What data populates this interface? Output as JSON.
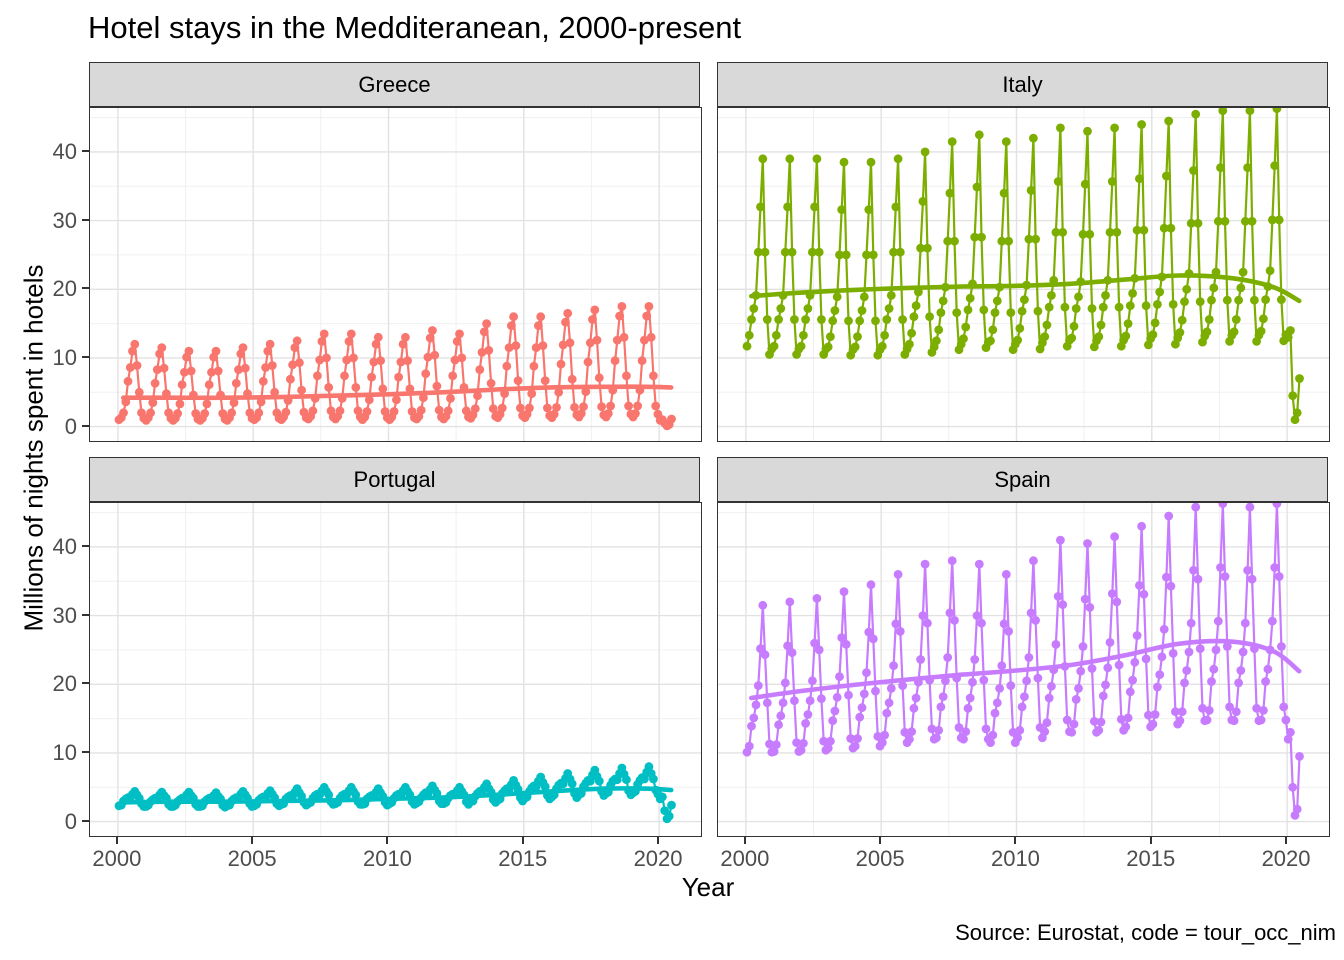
{
  "title": "Hotel stays in the Medditeranean, 2000-present",
  "caption": "Source: Eurostat, code = tour_occ_nim",
  "axes": {
    "x_label": "Year",
    "y_label": "Millions of nights spent in hotels",
    "x_ticks": [
      2000,
      2005,
      2010,
      2015,
      2020
    ],
    "y_ticks": [
      0,
      10,
      20,
      30,
      40
    ]
  },
  "chart_data": {
    "type": "line",
    "facet_layout": "2x2 grid, shared fixed scales",
    "x_unit": "monthly observations starting 2000-01, x = year + (month-0.5)/12",
    "x_domain": [
      1998.97,
      2021.55
    ],
    "y_domain": [
      -2.1,
      46.4
    ],
    "grid": {
      "x_major": [
        2000,
        2005,
        2010,
        2015,
        2020
      ],
      "x_minor": [
        2002.5,
        2007.5,
        2012.5,
        2017.5
      ],
      "y_major": [
        0,
        10,
        20,
        30,
        40
      ],
      "y_minor": [
        5,
        15,
        25,
        35,
        45
      ]
    },
    "facets": [
      {
        "name": "Greece",
        "color": "#F8766D",
        "start": "2000-01",
        "frequency": "monthly",
        "values": [
          1.0,
          1.3,
          2.0,
          3.6,
          6.6,
          8.6,
          11.0,
          12.0,
          8.9,
          5.0,
          2.0,
          1.2,
          0.9,
          1.3,
          2.0,
          3.5,
          6.3,
          8.3,
          10.6,
          11.5,
          8.5,
          4.8,
          2.0,
          1.2,
          0.9,
          1.2,
          1.9,
          3.3,
          6.1,
          7.9,
          10.1,
          11.0,
          8.1,
          4.6,
          1.9,
          1.1,
          0.9,
          1.2,
          1.9,
          3.3,
          6.1,
          7.9,
          10.1,
          11.0,
          8.1,
          4.6,
          1.9,
          1.1,
          0.9,
          1.3,
          2.0,
          3.5,
          6.3,
          8.3,
          10.6,
          11.5,
          8.5,
          4.8,
          2.0,
          1.2,
          1.0,
          1.3,
          2.0,
          3.6,
          6.6,
          8.6,
          11.0,
          12.0,
          8.9,
          5.0,
          2.0,
          1.2,
          1.0,
          1.4,
          2.1,
          3.8,
          6.9,
          9.0,
          11.5,
          12.5,
          9.3,
          5.3,
          2.1,
          1.3,
          1.1,
          1.5,
          2.3,
          4.1,
          7.4,
          9.7,
          12.4,
          13.5,
          10.0,
          5.7,
          2.3,
          1.4,
          1.1,
          1.5,
          2.3,
          4.1,
          7.4,
          9.7,
          12.4,
          13.5,
          10.0,
          5.7,
          2.3,
          1.4,
          1.0,
          1.4,
          2.2,
          3.9,
          7.2,
          9.4,
          12.0,
          13.0,
          9.6,
          5.5,
          2.2,
          1.3,
          1.0,
          1.4,
          2.2,
          3.9,
          7.2,
          9.4,
          12.0,
          13.0,
          9.6,
          5.5,
          2.2,
          1.3,
          1.1,
          1.5,
          2.4,
          4.2,
          7.7,
          10.1,
          12.9,
          14.0,
          10.4,
          5.9,
          2.4,
          1.4,
          1.1,
          1.5,
          2.3,
          4.1,
          7.4,
          9.7,
          12.4,
          13.5,
          10.0,
          5.7,
          2.3,
          1.4,
          1.2,
          1.7,
          2.6,
          4.5,
          8.3,
          10.8,
          13.8,
          15.0,
          11.1,
          6.3,
          2.6,
          1.5,
          1.3,
          1.8,
          2.7,
          4.8,
          8.8,
          11.5,
          14.7,
          16.0,
          11.8,
          6.7,
          2.7,
          1.6,
          1.3,
          1.8,
          2.7,
          4.8,
          8.8,
          11.5,
          14.7,
          16.0,
          11.8,
          6.7,
          2.7,
          1.6,
          1.3,
          1.8,
          2.8,
          5.0,
          9.1,
          11.9,
          15.2,
          16.5,
          12.2,
          6.9,
          2.8,
          1.7,
          1.4,
          1.9,
          2.9,
          5.1,
          9.4,
          12.2,
          15.6,
          17.0,
          12.6,
          7.1,
          2.9,
          1.7,
          1.4,
          1.9,
          3.0,
          5.3,
          9.6,
          12.6,
          16.1,
          17.5,
          13.0,
          7.4,
          3.0,
          1.8,
          1.4,
          1.9,
          3.0,
          5.3,
          9.6,
          12.6,
          16.1,
          17.5,
          13.0,
          7.4,
          3.0,
          1.8,
          0.9,
          1.0,
          0.5,
          0.1,
          0.3,
          1.1
        ],
        "trend": {
          "x": [
            2000.2,
            2002,
            2004,
            2006,
            2008,
            2010,
            2012,
            2014,
            2016,
            2018,
            2019.5,
            2020.45
          ],
          "y": [
            4.2,
            4.2,
            4.2,
            4.3,
            4.5,
            4.7,
            5.0,
            5.4,
            5.7,
            5.8,
            5.8,
            5.7
          ]
        }
      },
      {
        "name": "Italy",
        "color": "#7CAE00",
        "start": "2000-01",
        "frequency": "monthly",
        "values": [
          11.7,
          13.3,
          15.6,
          17.2,
          19.1,
          25.4,
          32.0,
          39.0,
          25.4,
          15.6,
          10.5,
          11.3,
          11.7,
          13.3,
          15.6,
          17.2,
          19.1,
          25.4,
          32.0,
          39.0,
          25.4,
          15.6,
          10.5,
          11.3,
          11.7,
          13.3,
          15.6,
          17.2,
          19.1,
          25.4,
          32.0,
          39.0,
          25.4,
          15.6,
          10.5,
          11.3,
          11.6,
          13.1,
          15.4,
          16.9,
          18.9,
          25.0,
          31.6,
          38.5,
          25.0,
          15.4,
          10.4,
          11.2,
          11.6,
          13.1,
          15.4,
          16.9,
          18.9,
          25.0,
          31.6,
          38.5,
          25.0,
          15.4,
          10.4,
          11.2,
          11.7,
          13.3,
          15.6,
          17.2,
          19.1,
          25.4,
          32.0,
          39.0,
          25.4,
          15.6,
          10.5,
          11.3,
          12.0,
          13.6,
          16.0,
          17.6,
          19.6,
          26.0,
          32.8,
          40.0,
          26.0,
          16.0,
          10.8,
          11.6,
          12.5,
          14.1,
          16.6,
          18.3,
          20.3,
          27.0,
          34.0,
          41.5,
          27.0,
          16.6,
          11.2,
          12.0,
          12.8,
          14.5,
          17.0,
          18.7,
          20.8,
          27.6,
          34.9,
          42.5,
          27.6,
          17.0,
          11.5,
          12.3,
          12.5,
          14.1,
          16.6,
          18.3,
          20.3,
          27.0,
          34.0,
          41.5,
          27.0,
          16.6,
          11.2,
          12.0,
          12.6,
          14.3,
          16.8,
          18.5,
          20.6,
          27.3,
          34.4,
          42.0,
          27.3,
          16.8,
          11.3,
          12.2,
          13.1,
          14.8,
          17.4,
          19.1,
          21.3,
          28.3,
          35.7,
          43.5,
          28.3,
          17.4,
          11.7,
          12.6,
          12.9,
          14.6,
          17.2,
          18.9,
          21.1,
          28.0,
          35.3,
          43.0,
          28.0,
          17.2,
          11.6,
          12.5,
          13.1,
          14.8,
          17.4,
          19.1,
          21.3,
          28.3,
          35.7,
          43.5,
          28.3,
          17.4,
          11.7,
          12.6,
          13.2,
          15.0,
          17.6,
          19.4,
          21.6,
          28.6,
          36.1,
          44.0,
          28.6,
          17.6,
          11.9,
          12.8,
          13.4,
          15.1,
          17.8,
          19.6,
          21.8,
          28.9,
          36.5,
          44.5,
          28.9,
          17.8,
          12.0,
          12.9,
          13.7,
          15.5,
          18.2,
          20.0,
          22.3,
          29.6,
          37.3,
          45.5,
          29.6,
          18.2,
          12.3,
          13.2,
          13.8,
          15.6,
          18.4,
          20.2,
          22.5,
          29.9,
          37.7,
          46.0,
          29.9,
          18.4,
          12.4,
          13.3,
          13.8,
          15.6,
          18.4,
          20.2,
          22.5,
          29.9,
          37.7,
          46.0,
          29.9,
          18.4,
          12.4,
          13.3,
          13.9,
          15.7,
          18.5,
          20.4,
          22.7,
          30.1,
          38.0,
          46.3,
          30.1,
          18.5,
          12.5,
          13.4,
          13.0,
          14.0,
          4.5,
          1.0,
          2.0,
          7.0
        ],
        "trend": {
          "x": [
            2000.2,
            2002,
            2004,
            2006,
            2008,
            2010,
            2012,
            2014,
            2016,
            2018,
            2019.5,
            2020.45
          ],
          "y": [
            19.0,
            19.5,
            19.9,
            20.2,
            20.4,
            20.5,
            20.8,
            21.4,
            22.0,
            21.6,
            20.3,
            18.3
          ]
        }
      },
      {
        "name": "Portugal",
        "color": "#00BFC4",
        "start": "2000-01",
        "frequency": "monthly",
        "values": [
          2.3,
          2.4,
          3.0,
          3.3,
          3.5,
          3.4,
          4.0,
          4.4,
          3.9,
          3.4,
          2.6,
          2.2,
          2.2,
          2.4,
          2.9,
          3.2,
          3.4,
          3.4,
          3.9,
          4.3,
          3.8,
          3.4,
          2.5,
          2.2,
          2.2,
          2.4,
          2.9,
          3.2,
          3.4,
          3.4,
          3.9,
          4.3,
          3.8,
          3.4,
          2.5,
          2.2,
          2.2,
          2.3,
          2.9,
          3.2,
          3.4,
          3.3,
          3.8,
          4.2,
          3.7,
          3.3,
          2.4,
          2.1,
          2.3,
          2.4,
          3.0,
          3.3,
          3.5,
          3.4,
          4.0,
          4.4,
          3.9,
          3.4,
          2.6,
          2.2,
          2.3,
          2.5,
          3.1,
          3.4,
          3.6,
          3.5,
          4.1,
          4.5,
          4.0,
          3.5,
          2.6,
          2.3,
          2.5,
          2.6,
          3.3,
          3.6,
          3.8,
          3.7,
          4.3,
          4.8,
          4.2,
          3.7,
          2.8,
          2.4,
          2.6,
          2.8,
          3.4,
          3.8,
          4.0,
          3.9,
          4.5,
          5.0,
          4.4,
          3.9,
          2.9,
          2.5,
          2.6,
          2.8,
          3.4,
          3.8,
          4.0,
          3.9,
          4.5,
          5.0,
          4.4,
          3.9,
          2.9,
          2.5,
          2.5,
          2.6,
          3.3,
          3.6,
          3.8,
          3.7,
          4.3,
          4.8,
          4.2,
          3.7,
          2.8,
          2.4,
          2.6,
          2.8,
          3.4,
          3.8,
          4.0,
          3.9,
          4.5,
          5.0,
          4.4,
          3.9,
          2.9,
          2.5,
          2.7,
          2.9,
          3.5,
          3.9,
          4.2,
          4.1,
          4.7,
          5.2,
          4.6,
          4.1,
          3.0,
          2.6,
          2.6,
          2.8,
          3.4,
          3.8,
          4.0,
          3.9,
          4.5,
          5.0,
          4.4,
          3.9,
          2.9,
          2.5,
          2.9,
          3.0,
          3.7,
          4.1,
          4.4,
          4.3,
          5.0,
          5.5,
          4.8,
          4.3,
          3.2,
          2.8,
          3.1,
          3.3,
          4.1,
          4.5,
          4.8,
          4.7,
          5.4,
          6.0,
          5.3,
          4.7,
          3.5,
          3.0,
          3.4,
          3.6,
          4.4,
          4.9,
          5.2,
          5.1,
          5.9,
          6.5,
          5.7,
          5.1,
          3.8,
          3.3,
          3.6,
          3.9,
          4.8,
          5.3,
          5.6,
          5.5,
          6.3,
          7.0,
          6.2,
          5.5,
          4.1,
          3.5,
          3.9,
          4.1,
          5.1,
          5.6,
          6.0,
          5.9,
          6.8,
          7.5,
          6.6,
          5.9,
          4.4,
          3.8,
          4.1,
          4.3,
          5.3,
          5.9,
          6.2,
          6.1,
          7.0,
          7.8,
          6.9,
          6.1,
          4.5,
          3.9,
          4.2,
          4.4,
          5.4,
          6.0,
          6.4,
          6.2,
          7.2,
          8.0,
          7.0,
          6.2,
          4.6,
          4.0,
          3.3,
          3.6,
          1.6,
          0.4,
          0.8,
          2.4
        ],
        "trend": {
          "x": [
            2000.2,
            2002,
            2004,
            2006,
            2008,
            2010,
            2012,
            2014,
            2016,
            2018,
            2019.5,
            2020.45
          ],
          "y": [
            2.8,
            2.9,
            2.9,
            3.0,
            3.1,
            3.3,
            3.5,
            3.9,
            4.4,
            4.8,
            4.8,
            4.6
          ]
        }
      },
      {
        "name": "Spain",
        "color": "#C77CFF",
        "start": "2000-01",
        "frequency": "monthly",
        "values": [
          10.1,
          11.0,
          13.9,
          15.1,
          17.0,
          19.8,
          25.2,
          31.5,
          24.3,
          17.3,
          11.3,
          10.1,
          10.2,
          11.2,
          14.1,
          15.4,
          17.3,
          20.2,
          25.6,
          32.0,
          24.6,
          17.6,
          11.5,
          10.2,
          10.4,
          11.4,
          14.3,
          15.6,
          17.6,
          20.5,
          26.0,
          32.5,
          25.0,
          17.9,
          11.7,
          10.4,
          10.7,
          11.7,
          14.7,
          16.1,
          18.1,
          21.1,
          26.8,
          33.5,
          25.8,
          18.4,
          12.1,
          10.7,
          11.0,
          12.1,
          15.2,
          16.6,
          18.6,
          21.7,
          27.6,
          34.5,
          26.6,
          19.0,
          12.4,
          11.0,
          11.5,
          12.6,
          15.8,
          17.3,
          19.4,
          22.7,
          28.8,
          36.0,
          27.7,
          19.8,
          13.0,
          11.5,
          12.0,
          13.1,
          16.5,
          18.0,
          20.3,
          23.6,
          30.0,
          37.5,
          28.9,
          20.6,
          13.5,
          12.0,
          12.2,
          13.3,
          16.7,
          18.2,
          20.5,
          23.9,
          30.4,
          38.0,
          29.3,
          20.9,
          13.7,
          12.2,
          12.0,
          13.1,
          16.5,
          18.0,
          20.3,
          23.6,
          30.0,
          37.5,
          28.9,
          20.6,
          13.5,
          12.0,
          11.5,
          12.6,
          15.8,
          17.3,
          19.4,
          22.7,
          28.8,
          36.0,
          27.7,
          19.8,
          13.0,
          11.5,
          12.2,
          13.3,
          16.7,
          18.2,
          20.5,
          23.9,
          30.4,
          38.0,
          29.3,
          20.9,
          13.7,
          12.2,
          13.1,
          14.4,
          18.0,
          19.7,
          22.1,
          25.8,
          32.8,
          41.0,
          31.6,
          22.6,
          14.8,
          13.1,
          13.0,
          14.2,
          17.8,
          19.4,
          21.9,
          25.5,
          32.4,
          40.5,
          31.2,
          22.3,
          14.6,
          13.0,
          13.3,
          14.5,
          18.3,
          19.9,
          22.4,
          26.1,
          33.2,
          41.5,
          32.0,
          22.8,
          14.9,
          13.3,
          13.8,
          15.1,
          18.9,
          20.6,
          23.2,
          27.1,
          34.4,
          43.0,
          33.1,
          23.7,
          15.5,
          13.8,
          14.2,
          15.6,
          19.6,
          21.4,
          24.0,
          28.0,
          35.6,
          44.5,
          34.3,
          24.5,
          16.0,
          14.2,
          14.7,
          16.0,
          20.2,
          22.0,
          24.7,
          28.9,
          36.6,
          45.8,
          35.3,
          25.2,
          16.5,
          14.7,
          14.8,
          16.2,
          20.4,
          22.2,
          25.0,
          29.2,
          37.0,
          46.3,
          35.7,
          25.5,
          16.7,
          14.8,
          14.7,
          16.0,
          20.2,
          22.0,
          24.7,
          28.9,
          36.6,
          45.8,
          35.3,
          25.2,
          16.5,
          14.7,
          14.8,
          16.2,
          20.4,
          22.2,
          25.0,
          29.2,
          37.0,
          46.3,
          35.7,
          25.5,
          16.7,
          14.8,
          12.0,
          13.0,
          5.0,
          0.9,
          1.8,
          9.5
        ],
        "trend": {
          "x": [
            2000.2,
            2002,
            2004,
            2006,
            2008,
            2010,
            2012,
            2014,
            2016,
            2018,
            2019.5,
            2020.45
          ],
          "y": [
            18.0,
            19.0,
            19.9,
            20.7,
            21.4,
            22.0,
            22.8,
            24.2,
            25.9,
            26.2,
            24.8,
            21.9
          ]
        }
      }
    ]
  }
}
